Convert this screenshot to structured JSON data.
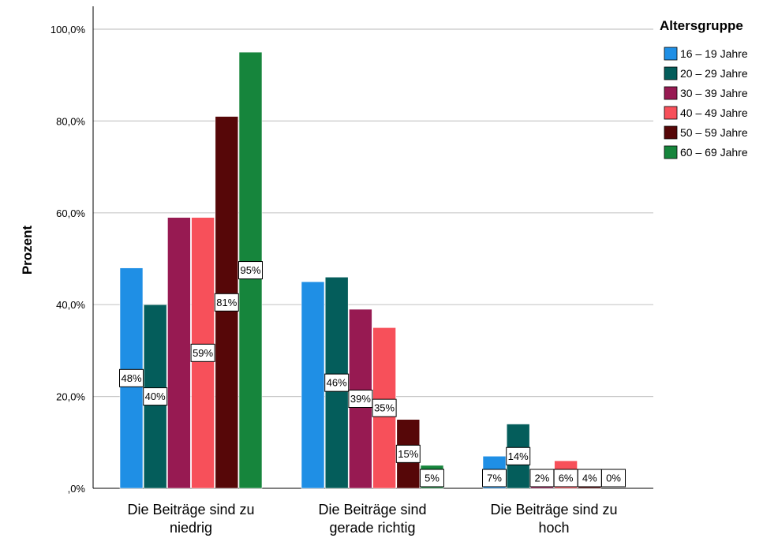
{
  "chart_data": {
    "type": "bar",
    "ylabel": "Prozent",
    "ylim": [
      0,
      100
    ],
    "yticks": [
      "100,0%",
      "80,0%",
      "60,0%",
      "40,0%",
      "20,0%",
      ",0%"
    ],
    "categories": [
      [
        "Die Beiträge sind zu",
        "niedrig"
      ],
      [
        "Die Beiträge sind",
        "gerade richtig"
      ],
      [
        "Die Beiträge sind zu",
        "hoch"
      ]
    ],
    "legend_title": "Altersgruppe",
    "legend_position": "right",
    "grid": "horizontal",
    "series": [
      {
        "name": "16 – 19 Jahre",
        "color": "#1f8fe5",
        "values": [
          48,
          45,
          7
        ],
        "labels": [
          "48%",
          "",
          "7%"
        ]
      },
      {
        "name": "20 – 29 Jahre",
        "color": "#045d5b",
        "values": [
          40,
          46,
          14
        ],
        "labels": [
          "40%",
          "46%",
          "14%"
        ]
      },
      {
        "name": "30 – 39 Jahre",
        "color": "#971a52",
        "values": [
          59,
          39,
          2
        ],
        "labels": [
          "",
          "39%",
          "2%"
        ]
      },
      {
        "name": "40 – 49 Jahre",
        "color": "#f7505a",
        "values": [
          59,
          35,
          6
        ],
        "labels": [
          "59%",
          "35%",
          "6%"
        ]
      },
      {
        "name": "50 – 59 Jahre",
        "color": "#560708",
        "values": [
          81,
          15,
          4
        ],
        "labels": [
          "81%",
          "15%",
          "4%"
        ]
      },
      {
        "name": "60 – 69 Jahre",
        "color": "#16853c",
        "values": [
          95,
          5,
          0
        ],
        "labels": [
          "95%",
          "5%",
          "0%"
        ]
      }
    ]
  }
}
